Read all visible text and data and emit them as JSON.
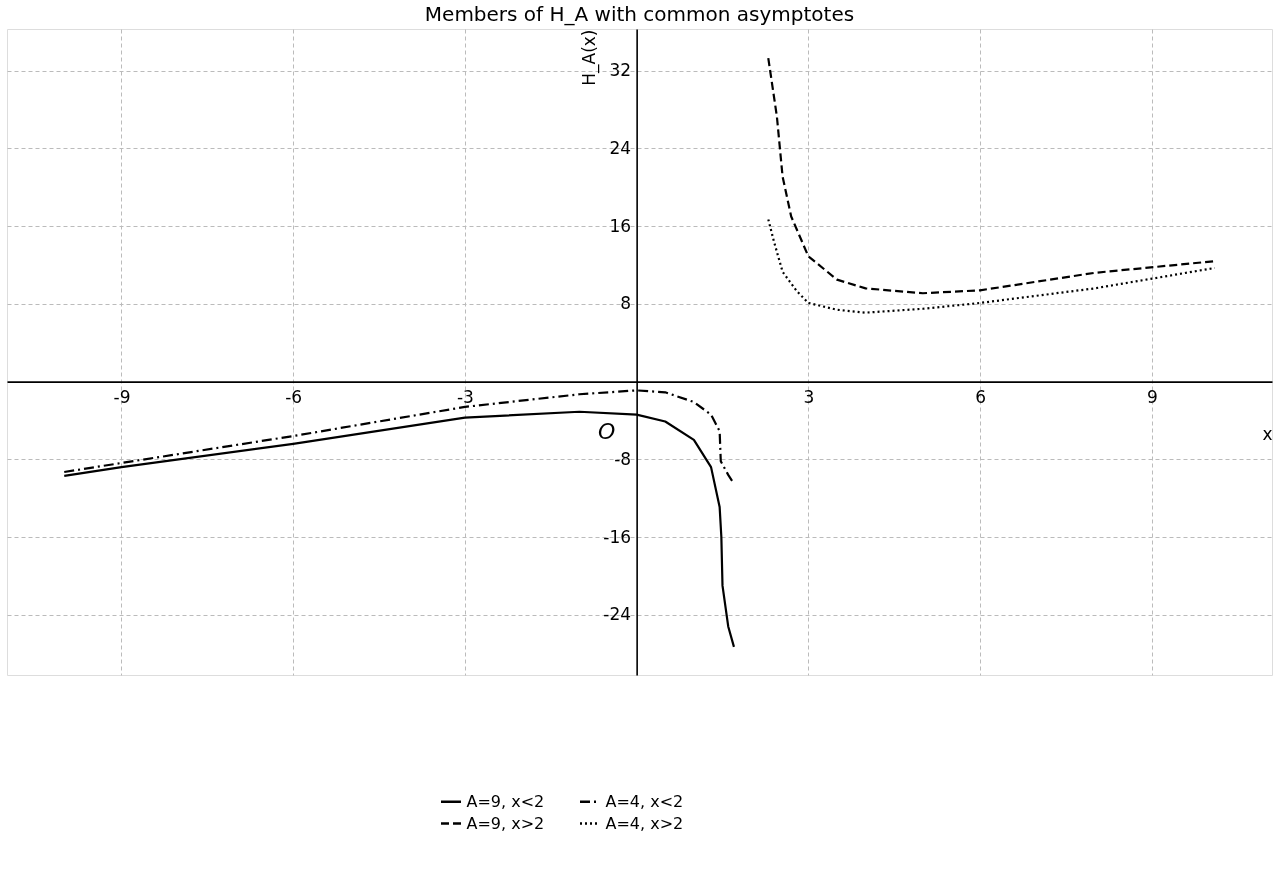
{
  "chart_data": {
    "type": "line",
    "title": "Members of H_A with common asymptotes",
    "xlabel": "x",
    "ylabel": "H_A(x)",
    "xlim": [
      -11,
      11.1
    ],
    "ylim": [
      -30.2,
      36.3
    ],
    "xticks": [
      -9,
      -6,
      -3,
      3,
      6,
      9
    ],
    "yticks": [
      -24,
      -16,
      -8,
      8,
      16,
      24,
      32
    ],
    "grid": true,
    "legend": "bottom",
    "marker": "none",
    "annotations": [
      "O"
    ],
    "series": [
      {
        "name": "A=9, x<2",
        "color": "#000000",
        "line_style": "solid",
        "x": [
          -10,
          -9,
          -6,
          -3,
          -1,
          0,
          0.5,
          1,
          1.3,
          1.45,
          1.48,
          1.5,
          1.6,
          1.7
        ],
        "values": [
          -9.7,
          -8.8,
          -6.4,
          -3.7,
          -3.1,
          -3.4,
          -4.1,
          -6.0,
          -8.8,
          -12.9,
          -16,
          -21,
          -25.2,
          -27.3
        ]
      },
      {
        "name": "A=9, x>2",
        "color": "#000000",
        "line_style": "dashed",
        "x": [
          2.3,
          2.45,
          2.55,
          2.7,
          3,
          3.5,
          4,
          5,
          6,
          8,
          10.1
        ],
        "values": [
          33.3,
          27.3,
          21.1,
          17,
          12.9,
          10.5,
          9.6,
          9.1,
          9.4,
          11.2,
          12.4
        ]
      },
      {
        "name": "A=4, x<2",
        "color": "#000000",
        "line_style": "dashdot",
        "x": [
          -10,
          -6,
          -3,
          -1,
          0,
          0.5,
          1,
          1.3,
          1.45,
          1.47,
          1.6,
          1.7
        ],
        "values": [
          -9.3,
          -5.6,
          -2.6,
          -1.3,
          -0.9,
          -1.1,
          -2.1,
          -3.4,
          -5.1,
          -8.2,
          -9.6,
          -10.5
        ]
      },
      {
        "name": "A=4, x>2",
        "color": "#000000",
        "line_style": "dotted",
        "x": [
          2.3,
          2.4,
          2.55,
          2.8,
          3,
          3.5,
          4,
          5,
          6,
          8,
          10.1
        ],
        "values": [
          16.7,
          14.4,
          11.3,
          9.3,
          8.1,
          7.4,
          7.1,
          7.5,
          8.1,
          9.6,
          11.7
        ]
      }
    ]
  }
}
